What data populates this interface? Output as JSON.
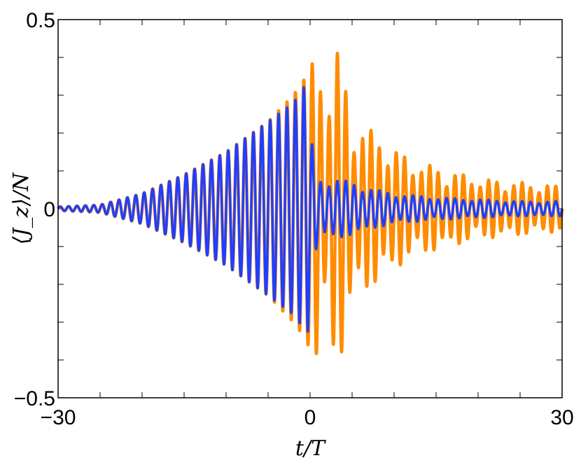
{
  "chart_data": {
    "type": "line",
    "xlabel": "t/T",
    "ylabel": "⟨J_z⟩/N",
    "xlim": [
      -30,
      30
    ],
    "ylim": [
      -0.5,
      0.5
    ],
    "x_ticks": [
      -30,
      0,
      30
    ],
    "x_tick_labels": [
      "−30",
      "0",
      "30"
    ],
    "y_ticks": [
      -0.5,
      0,
      0.5
    ],
    "y_tick_labels": [
      "−0.5",
      "0",
      "0.5"
    ],
    "grid": false,
    "oscillation_period": 1,
    "series": [
      {
        "color": "#ff8c00",
        "envelope": {
          "t": [
            -30,
            -25,
            -20,
            -15,
            -10,
            -5,
            -2,
            -1,
            0,
            1,
            2,
            3,
            4,
            5,
            6,
            8,
            10,
            12,
            15,
            20,
            25,
            30
          ],
          "amplitude": [
            0.005,
            0.01,
            0.04,
            0.09,
            0.15,
            0.23,
            0.3,
            0.33,
            0.37,
            0.44,
            0.3,
            0.44,
            0.36,
            0.25,
            0.22,
            0.2,
            0.16,
            0.13,
            0.11,
            0.08,
            0.07,
            0.06
          ]
        },
        "peaks": [
          {
            "t": 0.3,
            "value": -0.37
          },
          {
            "t": 0.7,
            "value": 0.44
          },
          {
            "t": 3.7,
            "value": 0.44
          },
          {
            "t": 4.2,
            "value": -0.37
          }
        ]
      },
      {
        "color": "#1f3fff",
        "envelope": {
          "t": [
            -30,
            -25,
            -20,
            -15,
            -10,
            -5,
            -2,
            -1,
            -0.3,
            0,
            1,
            2,
            3,
            5,
            8,
            10,
            15,
            20,
            25,
            30
          ],
          "amplitude": [
            0.005,
            0.01,
            0.04,
            0.09,
            0.15,
            0.23,
            0.28,
            0.31,
            0.34,
            0.2,
            0.08,
            0.08,
            0.08,
            0.07,
            0.05,
            0.04,
            0.03,
            0.025,
            0.02,
            0.02
          ]
        },
        "peaks": [
          {
            "t": -0.5,
            "value": 0.34
          },
          {
            "t": -0.2,
            "value": -0.31
          }
        ]
      }
    ]
  }
}
